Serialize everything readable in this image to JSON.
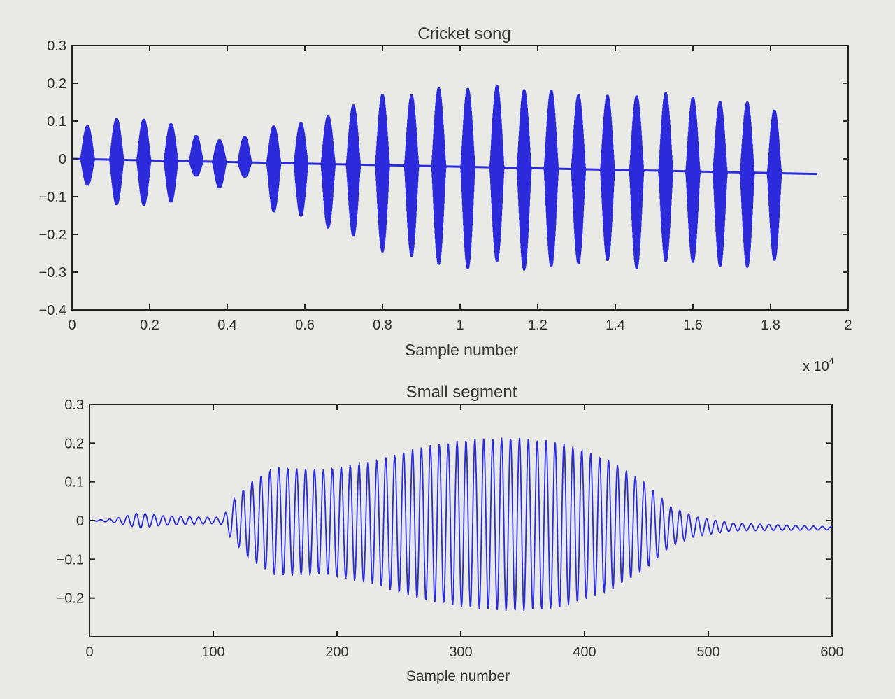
{
  "colors": {
    "background": "#e9e9e6",
    "axes": "#222222",
    "signal": "#2b2bdc"
  },
  "chart_data": [
    {
      "type": "line",
      "title": "Cricket song",
      "xlabel": "Sample number",
      "ylabel": "",
      "x_multiplier_label": "x 10",
      "x_multiplier_exponent": "4",
      "xlim": [
        0,
        20000
      ],
      "ylim": [
        -0.4,
        0.3
      ],
      "x_ticks": [
        0,
        2000,
        4000,
        6000,
        8000,
        10000,
        12000,
        14000,
        16000,
        18000,
        20000
      ],
      "x_tick_labels": [
        "0",
        "0.2",
        "0.4",
        "0.6",
        "0.8",
        "1",
        "1.2",
        "1.4",
        "1.6",
        "1.8",
        "2"
      ],
      "y_ticks": [
        -0.4,
        -0.3,
        -0.2,
        -0.1,
        0,
        0.1,
        0.2,
        0.3
      ],
      "y_tick_labels": [
        "−0.4",
        "−0.3",
        "−0.2",
        "−0.1",
        "0",
        "0.1",
        "0.2",
        "0.3"
      ],
      "grid": false,
      "signal_end_sample": 19200,
      "series": [
        {
          "chirp_bursts": [
            {
              "center": 400,
              "max": 0.09,
              "min": -0.07
            },
            {
              "center": 1150,
              "max": 0.11,
              "min": -0.12
            },
            {
              "center": 1850,
              "max": 0.11,
              "min": -0.12
            },
            {
              "center": 2550,
              "max": 0.1,
              "min": -0.11
            },
            {
              "center": 3200,
              "max": 0.07,
              "min": -0.04
            },
            {
              "center": 3800,
              "max": 0.06,
              "min": -0.07
            },
            {
              "center": 4450,
              "max": 0.07,
              "min": -0.04
            },
            {
              "center": 5200,
              "max": 0.1,
              "min": -0.13
            },
            {
              "center": 5900,
              "max": 0.11,
              "min": -0.14
            },
            {
              "center": 6600,
              "max": 0.13,
              "min": -0.17
            },
            {
              "center": 7250,
              "max": 0.16,
              "min": -0.19
            },
            {
              "center": 8000,
              "max": 0.19,
              "min": -0.23
            },
            {
              "center": 8750,
              "max": 0.19,
              "min": -0.24
            },
            {
              "center": 9450,
              "max": 0.21,
              "min": -0.26
            },
            {
              "center": 10200,
              "max": 0.21,
              "min": -0.27
            },
            {
              "center": 10950,
              "max": 0.22,
              "min": -0.25
            },
            {
              "center": 11650,
              "max": 0.21,
              "min": -0.27
            },
            {
              "center": 12350,
              "max": 0.21,
              "min": -0.26
            },
            {
              "center": 13050,
              "max": 0.2,
              "min": -0.25
            },
            {
              "center": 13800,
              "max": 0.2,
              "min": -0.24
            },
            {
              "center": 14550,
              "max": 0.2,
              "min": -0.26
            },
            {
              "center": 15300,
              "max": 0.21,
              "min": -0.24
            },
            {
              "center": 16000,
              "max": 0.2,
              "min": -0.24
            },
            {
              "center": 16700,
              "max": 0.19,
              "min": -0.25
            },
            {
              "center": 17400,
              "max": 0.19,
              "min": -0.25
            },
            {
              "center": 18100,
              "max": 0.17,
              "min": -0.23
            }
          ]
        }
      ]
    },
    {
      "type": "line",
      "title": "Small segment",
      "xlabel": "Sample number",
      "ylabel": "",
      "xlim": [
        0,
        600
      ],
      "ylim": [
        -0.3,
        0.3
      ],
      "x_ticks": [
        0,
        100,
        200,
        300,
        400,
        500,
        600
      ],
      "x_tick_labels": [
        "0",
        "100",
        "200",
        "300",
        "400",
        "500",
        "600"
      ],
      "y_ticks": [
        -0.2,
        -0.1,
        0,
        0.1,
        0.2,
        0.3
      ],
      "y_tick_labels": [
        "−0.2",
        "−0.1",
        "0",
        "0.1",
        "0.2",
        "0.3"
      ],
      "grid": false,
      "oscillation_period_samples": 7.2,
      "series": [
        {
          "envelope": [
            {
              "x": 0,
              "amp": 0.0
            },
            {
              "x": 20,
              "amp": 0.005
            },
            {
              "x": 40,
              "amp": 0.02
            },
            {
              "x": 60,
              "amp": 0.012
            },
            {
              "x": 100,
              "amp": 0.008
            },
            {
              "x": 108,
              "amp": 0.01
            },
            {
              "x": 115,
              "amp": 0.05
            },
            {
              "x": 130,
              "amp": 0.1
            },
            {
              "x": 150,
              "amp": 0.14
            },
            {
              "x": 190,
              "amp": 0.135
            },
            {
              "x": 230,
              "amp": 0.16
            },
            {
              "x": 270,
              "amp": 0.2
            },
            {
              "x": 310,
              "amp": 0.22
            },
            {
              "x": 345,
              "amp": 0.225
            },
            {
              "x": 380,
              "amp": 0.215
            },
            {
              "x": 420,
              "amp": 0.17
            },
            {
              "x": 450,
              "amp": 0.11
            },
            {
              "x": 470,
              "amp": 0.05
            },
            {
              "x": 490,
              "amp": 0.025
            },
            {
              "x": 520,
              "amp": 0.01
            },
            {
              "x": 600,
              "amp": 0.004
            }
          ]
        }
      ]
    }
  ]
}
